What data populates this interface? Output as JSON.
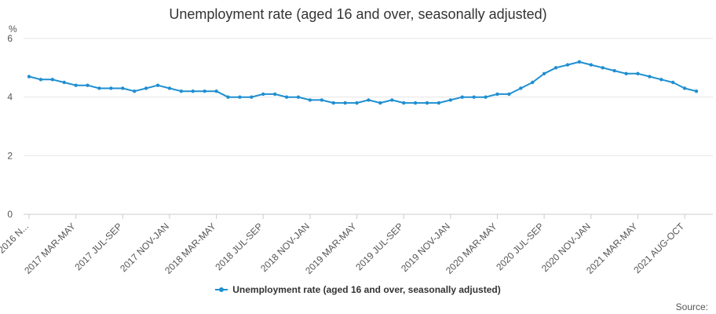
{
  "chart_data": {
    "type": "line",
    "title": "Unemployment rate (aged 16 and over, seasonally adjusted)",
    "ylabel": "%",
    "ylim": [
      0,
      6
    ],
    "yticks": [
      0,
      2,
      4,
      6
    ],
    "grid": true,
    "legend_position": "bottom",
    "x_tick_labels": [
      "2016 N...",
      "2017 MAR-MAY",
      "2017 JUL-SEP",
      "2017 NOV-JAN",
      "2018 MAR-MAY",
      "2018 JUL-SEP",
      "2018 NOV-JAN",
      "2019 MAR-MAY",
      "2019 JUL-SEP",
      "2019 NOV-JAN",
      "2020 MAR-MAY",
      "2020 JUL-SEP",
      "2020 NOV-JAN",
      "2021 MAR-MAY",
      "2021 AUG-OCT"
    ],
    "series": [
      {
        "name": "Unemployment rate (aged 16 and over, seasonally adjusted)",
        "color": "#1f8fd1",
        "values": [
          4.7,
          4.6,
          4.6,
          4.5,
          4.4,
          4.4,
          4.3,
          4.3,
          4.3,
          4.2,
          4.3,
          4.4,
          4.3,
          4.2,
          4.2,
          4.2,
          4.2,
          4.0,
          4.0,
          4.0,
          4.1,
          4.1,
          4.0,
          4.0,
          3.9,
          3.9,
          3.8,
          3.8,
          3.8,
          3.9,
          3.8,
          3.9,
          3.8,
          3.8,
          3.8,
          3.8,
          3.9,
          4.0,
          4.0,
          4.0,
          4.1,
          4.1,
          4.3,
          4.5,
          4.8,
          5.0,
          5.1,
          5.2,
          5.1,
          5.0,
          4.9,
          4.8,
          4.8,
          4.7,
          4.6,
          4.5,
          4.3,
          4.2
        ]
      }
    ]
  },
  "source_label": "Source:"
}
